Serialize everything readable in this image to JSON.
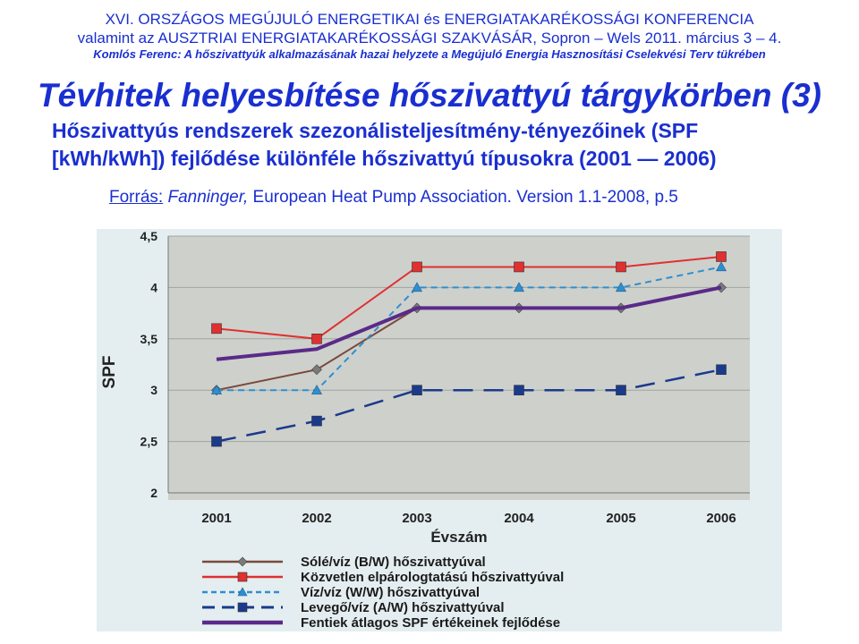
{
  "header": {
    "line1": "XVI. ORSZÁGOS MEGÚJULÓ ENERGETIKAI és ENERGIATAKARÉKOSSÁGI KONFERENCIA",
    "line2": "valamint az AUSZTRIAI ENERGIATAKARÉKOSSÁGI SZAKVÁSÁR, Sopron – Wels 2011. március 3 – 4.",
    "line3": "Komlós Ferenc: A hőszivattyúk alkalmazásának hazai helyzete a Megújuló Energia Hasznosítási Cselekvési Terv tükrében"
  },
  "slide": {
    "title": "Tévhitek helyesbítése hőszivattyú tárgykörben (3)",
    "subtitle_line1": "Hőszivattyús rendszerek szezonálisteljesítmény-tényezőinek (SPF",
    "subtitle_line2": "[kWh/kWh]) fejlődése különféle hőszivattyú típusokra (2001 — 2006)",
    "source_label": "Forrás:",
    "source_author": "Fanninger,",
    "source_text": "European Heat Pump Association. Version 1.1-2008, p.5"
  },
  "chart_data": {
    "type": "line",
    "ylabel": "SPF",
    "xlabel": "Évszám",
    "x": [
      "2001",
      "2002",
      "2003",
      "2004",
      "2005",
      "2006"
    ],
    "ylim": [
      2,
      4.5
    ],
    "yticks": [
      "2",
      "2,5",
      "3",
      "3,5",
      "4",
      "4,5"
    ],
    "ytick_values": [
      2,
      2.5,
      3,
      3.5,
      4,
      4.5
    ],
    "grid": true,
    "legend_position": "bottom",
    "series": [
      {
        "name": "Sólé/víz (B/W) hőszivattyúval",
        "values": [
          3.0,
          3.2,
          3.8,
          3.8,
          3.8,
          4.0
        ],
        "color": "#7a4a3a",
        "marker": "diamond",
        "style": "solid"
      },
      {
        "name": "Közvetlen elpárologtatású hőszivattyúval",
        "values": [
          3.6,
          3.5,
          4.2,
          4.2,
          4.2,
          4.3
        ],
        "color": "#e03030",
        "marker": "square",
        "style": "solid"
      },
      {
        "name": "Víz/víz (W/W) hőszivattyúval",
        "values": [
          3.0,
          3.0,
          4.0,
          4.0,
          4.0,
          4.2
        ],
        "color": "#2e8fd0",
        "marker": "triangle",
        "style": "dashed"
      },
      {
        "name": "Levegő/víz (A/W) hőszivattyúval",
        "values": [
          2.5,
          2.7,
          3.0,
          3.0,
          3.0,
          3.2
        ],
        "color": "#1a3a8c",
        "marker": "square",
        "style": "longdash"
      },
      {
        "name": "Fentiek átlagos SPF értékeinek fejlődése",
        "values": [
          3.3,
          3.4,
          3.8,
          3.8,
          3.8,
          4.0
        ],
        "color": "#5a2a88",
        "marker": "none",
        "style": "thick"
      }
    ]
  },
  "colors": {
    "header_blue": "#1a2fd0",
    "chart_bg": "#e4eef0",
    "plot_bg": "#ced0cc"
  }
}
